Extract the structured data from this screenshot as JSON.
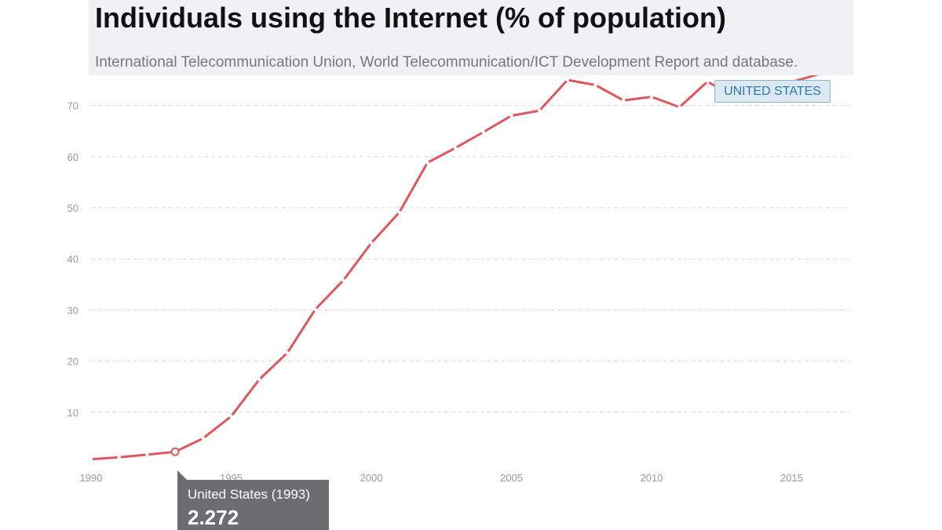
{
  "header": {
    "title": "Individuals using the Internet (% of population)",
    "subtitle": "International Telecommunication Union, World Telecommunication/ICT Development Report and database."
  },
  "series_label": "UNITED STATES",
  "tooltip": {
    "title": "United States (1993)",
    "value": "2.272"
  },
  "colors": {
    "line": "#e0565e",
    "grid": "#d9d9d9",
    "tick_text": "#9a9a9a",
    "header_bg": "#eff1f4",
    "tooltip_bg": "#6a6e72",
    "label_border": "#8eb3c9",
    "label_text": "#2d7aa8"
  },
  "chart_data": {
    "type": "line",
    "title": "Individuals using the Internet (% of population)",
    "subtitle": "International Telecommunication Union, World Telecommunication/ICT Development Report and database.",
    "xlabel": "",
    "ylabel": "",
    "x_ticks": [
      "1990",
      "1995",
      "2000",
      "2005",
      "2010",
      "2015"
    ],
    "y_ticks": [
      "10",
      "20",
      "30",
      "40",
      "50",
      "60",
      "70"
    ],
    "xlim": [
      1990,
      2017
    ],
    "ylim": [
      0,
      75
    ],
    "grid": true,
    "series": [
      {
        "name": "UNITED STATES",
        "x": [
          1990,
          1991,
          1992,
          1993,
          1994,
          1995,
          1996,
          1997,
          1998,
          1999,
          2000,
          2001,
          2002,
          2003,
          2004,
          2005,
          2006,
          2007,
          2008,
          2009,
          2010,
          2011,
          2012,
          2013,
          2014,
          2015,
          2016
        ],
        "y": [
          0.8,
          1.2,
          1.7,
          2.272,
          4.9,
          9.2,
          16.4,
          21.6,
          30.1,
          35.8,
          43.1,
          49.1,
          58.8,
          61.7,
          64.8,
          68.0,
          69.0,
          75.0,
          74.0,
          71.0,
          71.7,
          69.7,
          74.7,
          71.4,
          73.0,
          74.6,
          76.2
        ],
        "highlight_x": 1993
      }
    ]
  }
}
